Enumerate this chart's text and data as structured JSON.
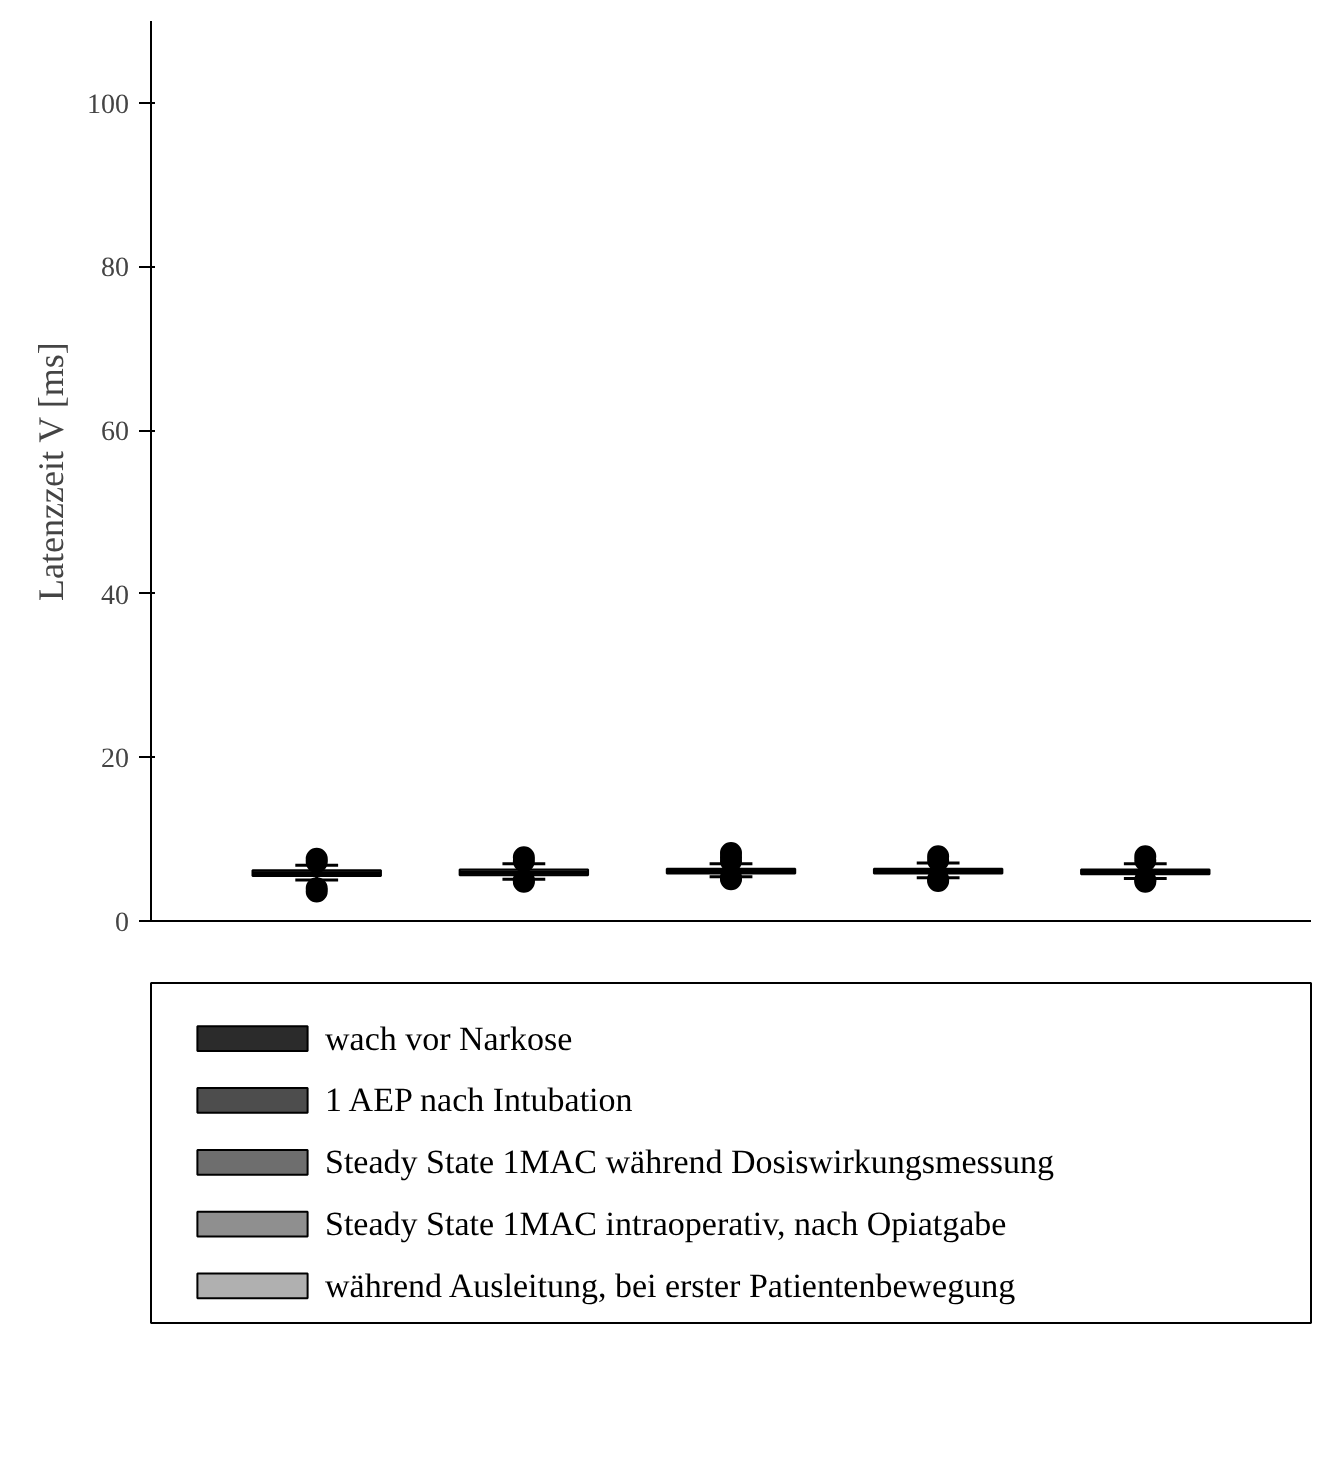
{
  "chart_data": {
    "type": "box",
    "ylabel": "Latenzzeit V [ms]",
    "categories": [
      null,
      null,
      null,
      null,
      null
    ],
    "ylim": [
      0,
      110
    ],
    "yticks": [
      0,
      20,
      40,
      60,
      80,
      100
    ],
    "grid": false,
    "legend": "bottom",
    "series": [
      {
        "name": "wach vor Narkose",
        "color": "#2b2b2b",
        "boxes": [
          {
            "low": 5.0,
            "q1": 5.5,
            "median": 5.8,
            "q3": 6.2,
            "high": 6.8,
            "outliers": [
              7.2,
              7.6,
              3.6,
              4.0
            ]
          },
          null,
          null,
          null,
          null
        ]
      },
      {
        "name": "1 AEP nach Intubation",
        "color": "#4d4d4d",
        "boxes": [
          null,
          {
            "low": 5.1,
            "q1": 5.6,
            "median": 5.9,
            "q3": 6.3,
            "high": 7.0,
            "outliers": [
              7.3,
              7.8,
              5.0,
              4.8
            ]
          },
          null,
          null,
          null
        ]
      },
      {
        "name": "Steady State 1MAC während Dosiswirkungsmessung",
        "color": "#6e6e6e",
        "boxes": [
          null,
          null,
          {
            "low": 5.4,
            "q1": 5.8,
            "median": 6.1,
            "q3": 6.4,
            "high": 7.0,
            "outliers": [
              7.3,
              7.8,
              8.3,
              5.3,
              5.1
            ]
          },
          null,
          null
        ]
      },
      {
        "name": "Steady State 1MAC intraoperativ, nach Opiatgabe",
        "color": "#8f8f8f",
        "boxes": [
          null,
          null,
          null,
          {
            "low": 5.3,
            "q1": 5.8,
            "median": 6.1,
            "q3": 6.4,
            "high": 7.1,
            "outliers": [
              7.4,
              7.9,
              5.1,
              4.9
            ]
          },
          null
        ]
      },
      {
        "name": "während Ausleitung, bei erster Patientenbewegung",
        "color": "#b0b0b0",
        "boxes": [
          null,
          null,
          null,
          null,
          {
            "low": 5.2,
            "q1": 5.7,
            "median": 6.0,
            "q3": 6.3,
            "high": 7.0,
            "outliers": [
              7.4,
              7.9,
              5.0,
              4.8
            ]
          }
        ]
      }
    ]
  }
}
